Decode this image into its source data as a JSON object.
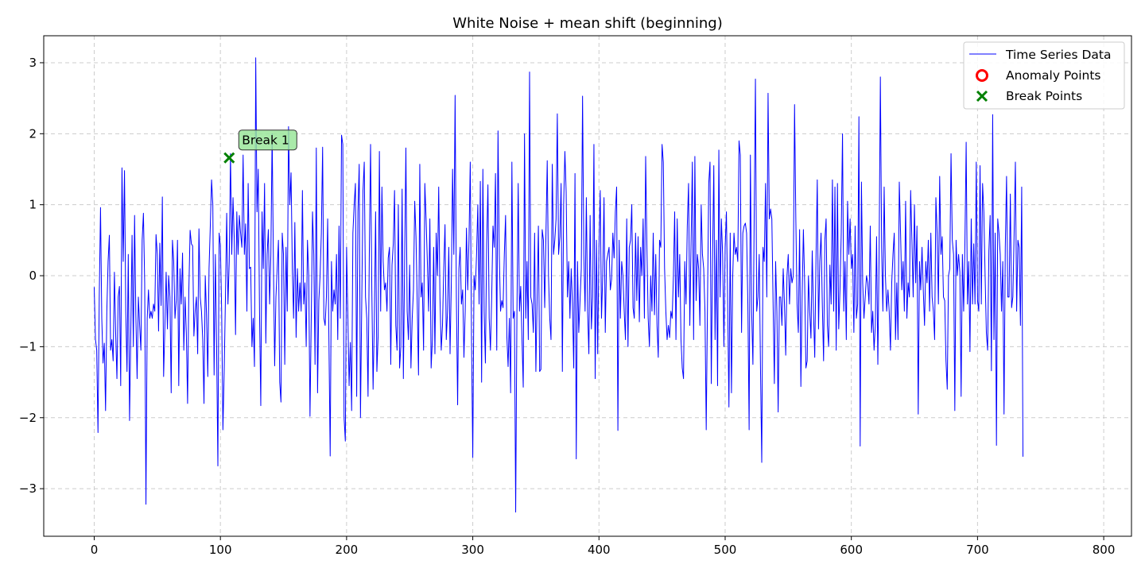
{
  "chart_data": {
    "type": "line",
    "title": "White Noise + mean shift (beginning)",
    "xlabel": "",
    "ylabel": "",
    "xlim": [
      -40,
      822
    ],
    "ylim": [
      -3.67,
      3.38
    ],
    "xticks": [
      0,
      100,
      200,
      300,
      400,
      500,
      600,
      700,
      800
    ],
    "yticks": [
      -3,
      -2,
      -1,
      0,
      1,
      2,
      3
    ],
    "grid": true,
    "legend_position": "top-right",
    "legend": [
      {
        "label": "Time Series Data",
        "marker": "line",
        "color": "#0000ff"
      },
      {
        "label": "Anomaly Points",
        "marker": "circle",
        "color": "#ff0000"
      },
      {
        "label": "Break Points",
        "marker": "x",
        "color": "#008000"
      }
    ],
    "series": [
      {
        "name": "Time Series Data",
        "color": "#0000ff",
        "x_start": 0,
        "x_step": 1,
        "values": [
          -0.16,
          -0.9,
          -1.05,
          -2.21,
          -0.3,
          0.96,
          -0.6,
          -1.23,
          -0.95,
          -1.9,
          -0.5,
          0.2,
          0.57,
          -1.05,
          -0.9,
          -1.2,
          0.05,
          -0.8,
          -1.45,
          -0.3,
          -0.15,
          -1.55,
          1.52,
          0.2,
          1.48,
          -0.5,
          -1.35,
          0.3,
          -2.04,
          -0.8,
          0.57,
          -1.0,
          0.85,
          -0.55,
          -1.45,
          -0.3,
          -0.7,
          -1.05,
          0.5,
          0.88,
          -0.1,
          -3.22,
          -0.6,
          -0.2,
          -0.6,
          -0.5,
          -0.6,
          -0.4,
          -0.5,
          0.58,
          0.3,
          -0.78,
          0.46,
          -0.42,
          1.11,
          -1.42,
          -0.72,
          0.05,
          -0.75,
          0.0,
          -0.3,
          -1.65,
          0.5,
          0.2,
          -0.6,
          -0.35,
          0.5,
          -1.55,
          0.1,
          -0.4,
          0.32,
          -1.05,
          -0.3,
          -0.8,
          -1.8,
          -0.2,
          0.64,
          0.45,
          0.42,
          -0.85,
          -0.5,
          -0.3,
          -1.1,
          0.66,
          -0.3,
          -0.5,
          -0.9,
          -1.8,
          0.0,
          -0.55,
          -1.42,
          0.1,
          0.7,
          1.35,
          1.0,
          -1.4,
          0.3,
          -1.0,
          -2.68,
          0.6,
          0.43,
          -0.5,
          -2.17,
          -1.35,
          -0.3,
          0.88,
          -0.4,
          0.2,
          1.72,
          0.3,
          1.1,
          0.5,
          -0.83,
          0.9,
          0.3,
          0.85,
          0.6,
          0.4,
          1.7,
          0.3,
          0.73,
          -0.5,
          1.3,
          0.1,
          0.12,
          -1.0,
          -0.6,
          -1.28,
          3.07,
          0.9,
          1.5,
          -0.5,
          -1.83,
          0.9,
          0.1,
          1.3,
          -0.95,
          0.3,
          0.65,
          -0.4,
          0.3,
          2.0,
          0.2,
          -1.27,
          -0.3,
          0.1,
          0.5,
          -1.5,
          -1.78,
          0.6,
          0.3,
          -1.25,
          0.4,
          -0.5,
          2.1,
          1.0,
          1.45,
          0.1,
          -0.6,
          0.75,
          -0.87,
          0.1,
          -0.5,
          -0.1,
          -0.5,
          1.2,
          -0.4,
          -0.1,
          -1.0,
          0.5,
          0.0,
          -1.98,
          -0.6,
          0.9,
          0.3,
          -1.25,
          1.8,
          -1.65,
          -0.35,
          0.0,
          0.6,
          1.81,
          -0.6,
          -0.7,
          -0.3,
          0.8,
          -0.9,
          -2.54,
          0.2,
          -0.5,
          -0.2,
          -0.4,
          0.3,
          -0.9,
          0.7,
          -0.6,
          1.98,
          1.85,
          -2.0,
          -2.33,
          0.4,
          -0.55,
          -1.55,
          -0.94,
          -1.9,
          0.6,
          1.0,
          1.3,
          -1.7,
          0.9,
          1.57,
          -2.0,
          -0.4,
          1.2,
          1.6,
          -0.3,
          -0.6,
          -1.7,
          0.3,
          1.85,
          -0.2,
          -1.6,
          -0.6,
          0.9,
          -1.35,
          -0.85,
          1.75,
          -0.5,
          1.25,
          0.2,
          -0.2,
          -0.1,
          -0.5,
          0.25,
          0.4,
          -1.25,
          0.15,
          0.45,
          1.2,
          -0.7,
          -1.05,
          1.0,
          -1.3,
          -1.0,
          1.22,
          -1.45,
          0.2,
          1.8,
          -0.5,
          -0.9,
          0.15,
          -1.3,
          -0.6,
          -0.2,
          1.05,
          0.55,
          -0.4,
          -1.4,
          1.57,
          -0.3,
          -0.1,
          -1.05,
          1.3,
          0.8,
          0.2,
          -0.5,
          0.8,
          -1.3,
          -0.9,
          0.4,
          -1.1,
          0.6,
          0.0,
          1.25,
          -0.3,
          -1.05,
          -0.7,
          0.1,
          0.72,
          -0.9,
          -0.5,
          0.4,
          -1.1,
          -0.1,
          1.5,
          0.3,
          2.54,
          -0.3,
          -1.82,
          0.1,
          0.4,
          -0.4,
          -0.2,
          -1.15,
          -0.5,
          0.67,
          -0.2,
          0.5,
          1.6,
          -0.9,
          -2.56,
          0.0,
          -0.2,
          0.3,
          1.0,
          -0.4,
          1.33,
          -1.5,
          1.5,
          -0.5,
          -1.23,
          0.45,
          1.28,
          -0.6,
          -1.05,
          -0.3,
          0.7,
          0.4,
          1.44,
          -1.05,
          2.04,
          0.3,
          -0.5,
          -0.35,
          -0.45,
          0.3,
          0.85,
          -0.85,
          -1.28,
          -0.6,
          -1.65,
          1.6,
          -0.6,
          -0.5,
          -3.33,
          -0.5,
          1.3,
          -0.5,
          -0.15,
          -0.9,
          -1.57,
          2.0,
          -0.6,
          0.2,
          -0.9,
          2.87,
          -0.3,
          -0.4,
          -0.8,
          0.6,
          -1.35,
          -0.3,
          0.7,
          -1.35,
          -1.32,
          0.65,
          0.5,
          -0.45,
          0.6,
          1.62,
          0.0,
          -0.6,
          -0.9,
          1.57,
          0.3,
          0.5,
          0.8,
          2.28,
          0.3,
          0.55,
          1.3,
          -1.35,
          1.0,
          1.75,
          1.18,
          -0.3,
          0.2,
          -0.6,
          0.1,
          -0.4,
          -1.3,
          1.44,
          -2.58,
          0.2,
          -0.8,
          -0.35,
          0.1,
          2.53,
          0.3,
          -0.5,
          1.1,
          -0.5,
          -1.1,
          0.85,
          -0.75,
          -0.3,
          1.85,
          -1.45,
          0.5,
          -1.1,
          0.4,
          1.2,
          -0.6,
          0.0,
          1.1,
          -0.8,
          0.2,
          0.3,
          0.4,
          -0.2,
          -0.05,
          0.6,
          0.25,
          0.9,
          1.25,
          -2.18,
          0.5,
          -0.6,
          0.2,
          0.0,
          -0.5,
          -0.9,
          0.8,
          -1.0,
          0.4,
          0.5,
          1.0,
          -0.45,
          -0.6,
          0.6,
          -0.35,
          0.55,
          -0.65,
          0.4,
          0.0,
          0.8,
          -0.6,
          1.68,
          0.4,
          -0.6,
          -1.0,
          0.0,
          -0.5,
          0.6,
          -0.55,
          0.3,
          -0.7,
          -1.15,
          0.5,
          0.4,
          1.85,
          1.6,
          0.1,
          -0.5,
          -0.9,
          -0.7,
          -0.87,
          -0.5,
          -0.6,
          0.0,
          0.9,
          -0.9,
          0.8,
          -0.3,
          0.3,
          -0.9,
          -1.3,
          -1.45,
          0.2,
          -0.4,
          0.7,
          1.3,
          -0.7,
          0.45,
          1.6,
          -0.9,
          1.68,
          -0.35,
          0.3,
          0.1,
          -0.7,
          1.0,
          0.3,
          0.1,
          -0.5,
          -2.17,
          -0.4,
          1.3,
          1.6,
          -1.52,
          0.2,
          1.55,
          -0.9,
          0.5,
          -1.55,
          1.77,
          -0.3,
          0.8,
          0.3,
          -1.0,
          0.4,
          0.9,
          -0.4,
          -1.85,
          0.6,
          -1.65,
          0.0,
          0.6,
          0.3,
          0.4,
          0.2,
          1.9,
          1.7,
          -0.8,
          0.6,
          0.7,
          0.74,
          0.6,
          -0.4,
          -2.17,
          1.7,
          -0.5,
          -1.25,
          0.8,
          2.77,
          -0.5,
          -0.3,
          0.3,
          -1.3,
          -2.63,
          0.4,
          0.2,
          1.3,
          -0.3,
          2.57,
          0.8,
          0.94,
          0.8,
          -0.4,
          -1.52,
          0.2,
          -0.5,
          -1.92,
          -0.3,
          -0.3,
          -0.7,
          0.1,
          -0.4,
          -1.12,
          0.0,
          0.3,
          -0.4,
          0.1,
          -0.1,
          0.0,
          2.41,
          0.8,
          -0.4,
          -0.8,
          0.65,
          -1.56,
          -0.3,
          0.65,
          -0.1,
          -1.3,
          -1.2,
          0.0,
          -0.5,
          -0.88,
          0.35,
          -0.5,
          -1.15,
          0.25,
          1.35,
          -0.75,
          0.2,
          0.6,
          -0.4,
          -1.2,
          0.5,
          0.8,
          -0.7,
          -1.0,
          0.15,
          -0.4,
          1.35,
          -0.5,
          1.25,
          -1.05,
          1.3,
          -0.75,
          -0.2,
          0.6,
          2.0,
          -0.5,
          0.2,
          -0.9,
          1.05,
          0.3,
          0.8,
          0.1,
          0.3,
          -0.8,
          0.7,
          -0.6,
          -0.4,
          2.24,
          -2.4,
          1.32,
          -0.1,
          -0.6,
          -0.3,
          0.0,
          -0.1,
          -0.4,
          0.7,
          -0.8,
          -0.5,
          -1.05,
          -0.7,
          0.55,
          -1.25,
          0.3,
          2.8,
          0.4,
          -0.5,
          1.25,
          0.0,
          -0.5,
          -0.2,
          -0.5,
          -1.05,
          -0.1,
          0.3,
          0.6,
          -0.9,
          -0.1,
          -0.9,
          1.32,
          0.6,
          -0.2,
          0.2,
          -0.5,
          1.05,
          -0.6,
          -0.1,
          -0.3,
          1.2,
          0.5,
          -0.3,
          1.0,
          -0.1,
          0.7,
          -1.95,
          0.2,
          -0.2,
          0.4,
          -0.2,
          -0.7,
          0.2,
          -0.1,
          0.5,
          -0.5,
          0.6,
          -0.3,
          -0.5,
          -0.9,
          1.1,
          0.6,
          -0.4,
          1.4,
          0.3,
          0.55,
          -0.3,
          -0.35,
          -1.2,
          -1.6,
          0.0,
          0.1,
          1.72,
          0.5,
          0.3,
          -1.9,
          0.5,
          0.0,
          0.3,
          0.05,
          -1.7,
          0.3,
          -0.5,
          0.45,
          1.88,
          -0.4,
          0.2,
          -1.07,
          0.8,
          -0.4,
          0.45,
          -0.4,
          1.6,
          -0.35,
          -0.5,
          1.55,
          -0.4,
          1.3,
          0.9,
          0.0,
          -0.8,
          -1.05,
          0.35,
          0.85,
          -1.34,
          2.27,
          -0.9,
          0.6,
          -2.39,
          0.8,
          0.6,
          0.3,
          -0.5,
          0.2,
          -1.95,
          0.4,
          1.4,
          -0.3,
          -0.3,
          1.15,
          -0.45,
          -0.3,
          0.6,
          1.6,
          -0.5,
          0.5,
          0.4,
          -0.7,
          1.25,
          -2.55
        ]
      }
    ],
    "break_points": [
      {
        "x": 107,
        "y": 1.66,
        "label": "Break 1"
      }
    ],
    "anomaly_points": []
  }
}
